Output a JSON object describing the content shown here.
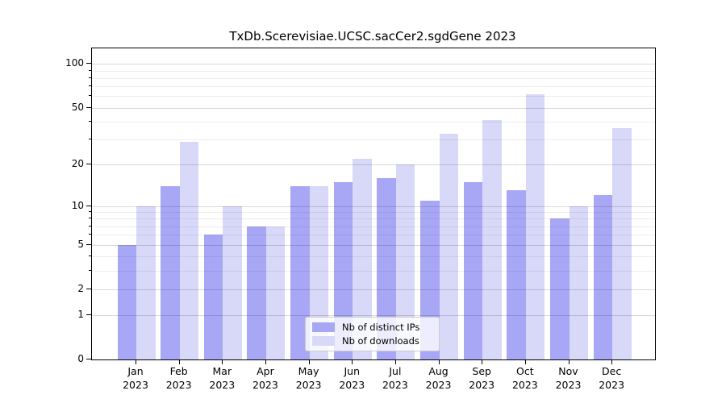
{
  "chart_data": {
    "type": "bar",
    "title": "TxDb.Scerevisiae.UCSC.sacCer2.sgdGene 2023",
    "categories": [
      "Jan",
      "Feb",
      "Mar",
      "Apr",
      "May",
      "Jun",
      "Jul",
      "Aug",
      "Sep",
      "Oct",
      "Nov",
      "Dec"
    ],
    "category_year": "2023",
    "series": [
      {
        "name": "Nb of distinct IPs",
        "color": "#a7a7f5",
        "values": [
          5,
          14,
          6,
          7,
          14,
          15,
          16,
          11,
          15,
          13,
          8,
          12
        ]
      },
      {
        "name": "Nb of downloads",
        "color": "#d8d8f9",
        "values": [
          10,
          29,
          10,
          7,
          14,
          22,
          20,
          33,
          41,
          62,
          10,
          36
        ]
      }
    ],
    "xlabel": "",
    "ylabel": "",
    "yscale": "log1p",
    "ylim": [
      0,
      128
    ],
    "y_major_ticks": [
      0,
      1,
      2,
      5,
      10,
      20,
      50,
      100
    ],
    "y_minor_ticks": [
      3,
      4,
      6,
      7,
      8,
      9,
      30,
      40,
      60,
      70,
      80,
      90
    ],
    "grid": "horizontal",
    "legend_position": "lower-center"
  },
  "colors": {
    "background": "#ffffff",
    "spine": "#000000",
    "major_grid": "rgba(0,0,0,0.15)",
    "minor_grid": "rgba(0,0,0,0.065)",
    "text": "#000000"
  }
}
